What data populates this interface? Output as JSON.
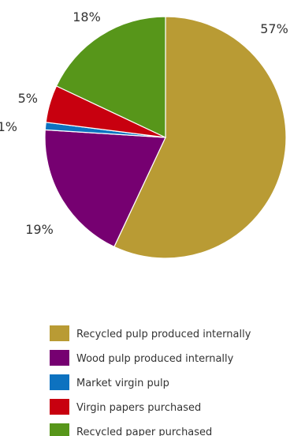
{
  "chart_data": {
    "type": "pie",
    "title": "",
    "slices": [
      {
        "label": "Recycled pulp produced internally",
        "value": 57,
        "display": "57%",
        "color": "#b99b34"
      },
      {
        "label": "Wood pulp produced internally",
        "value": 19,
        "display": "19%",
        "color": "#760071"
      },
      {
        "label": "Market virgin pulp",
        "value": 1,
        "display": "1%",
        "color": "#0d72c0"
      },
      {
        "label": "Virgin papers purchased",
        "value": 5,
        "display": "5%",
        "color": "#c8000f"
      },
      {
        "label": "Recycled paper purchased",
        "value": 18,
        "display": "18%",
        "color": "#57961a"
      }
    ],
    "legend": {
      "placement": "bottom-left"
    }
  }
}
